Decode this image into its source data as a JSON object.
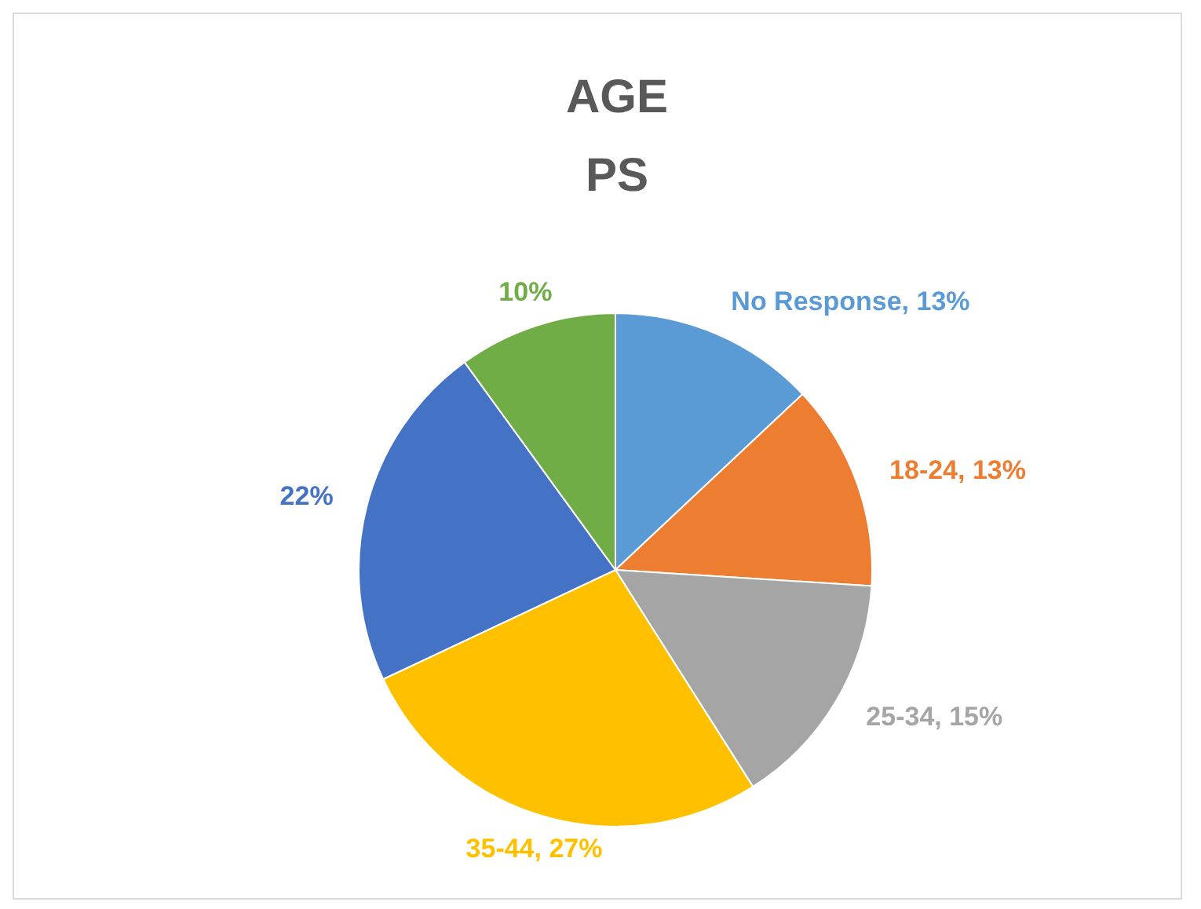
{
  "chart_data": {
    "type": "pie",
    "title": "AGE",
    "subtitle": "PS",
    "categories": [
      "No Response",
      "18-24",
      "25-34",
      "35-44",
      null,
      null
    ],
    "values": [
      13,
      13,
      15,
      27,
      22,
      10
    ],
    "colors": [
      "#5b9bd5",
      "#ed7d31",
      "#a5a5a5",
      "#ffc000",
      "#4472c4",
      "#70ad47"
    ],
    "value_labels": [
      "13%",
      "13%",
      "15%",
      "27%",
      "22%",
      "10%"
    ],
    "legend": false
  }
}
